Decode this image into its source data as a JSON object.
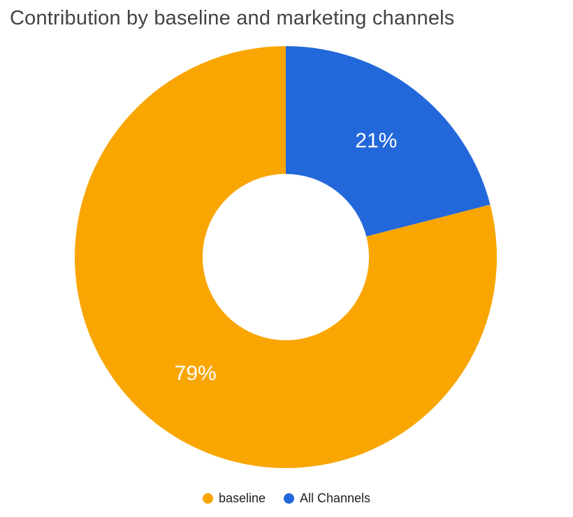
{
  "chart_data": {
    "type": "pie",
    "donut": true,
    "title": "Contribution by baseline and marketing channels",
    "legend_position": "bottom",
    "slices": [
      {
        "label": "baseline",
        "value": 79,
        "display": "79%",
        "color": "#F9A602"
      },
      {
        "label": "All Channels",
        "value": 21,
        "display": "21%",
        "color": "#2368DA"
      }
    ]
  }
}
